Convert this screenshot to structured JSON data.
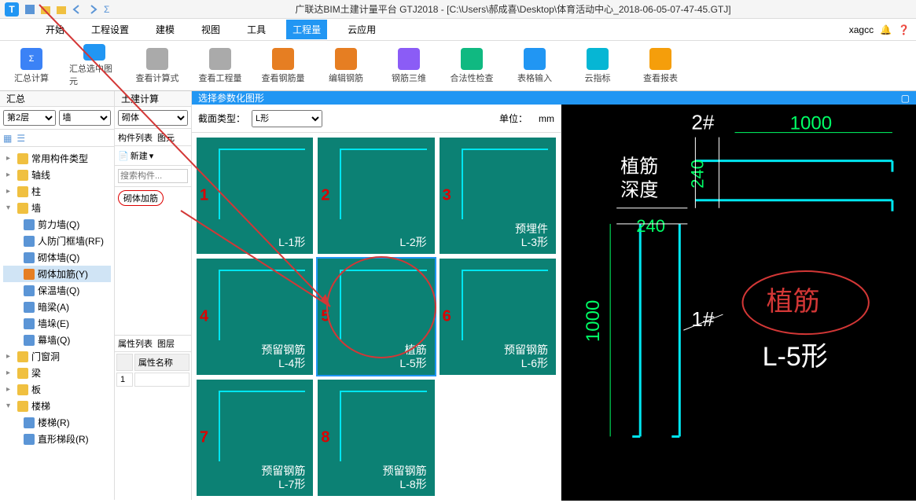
{
  "app": {
    "title": "广联达BIM土建计量平台 GTJ2018 - [C:\\Users\\郝成喜\\Desktop\\体育活动中心_2018-06-05-07-47-45.GTJ]",
    "username": "xagcc"
  },
  "menus": [
    "开始",
    "工程设置",
    "建模",
    "视图",
    "工具",
    "工程量",
    "云应用"
  ],
  "menu_active": "工程量",
  "ribbon": [
    "汇总计算",
    "汇总选中图元",
    "查看计算式",
    "查看工程量",
    "查看钢筋量",
    "编辑钢筋",
    "钢筋三维",
    "合法性检查",
    "表格输入",
    "云指标",
    "查看报表"
  ],
  "left_section": "汇总",
  "mid_section": "土建计算",
  "drop_floor": "第2层",
  "drop_cat": "墙",
  "drop_sub": "砌体",
  "tab_components": "构件列表",
  "tab_drawing": "图元",
  "tab_new": "新建",
  "search_placeholder": "搜索构件...",
  "highlighted_component": "砌体加筋",
  "prop_tab": "属性列表",
  "prop_tab2": "图层",
  "prop_col": "属性名称",
  "prop_row": "1",
  "tree": {
    "n1": "常用构件类型",
    "n2": "轴线",
    "n3": "柱",
    "n4": "墙",
    "n4_children": {
      "a": "剪力墙(Q)",
      "b": "人防门框墙(RF)",
      "c": "砌体墙(Q)",
      "d": "砌体加筋(Y)",
      "e": "保温墙(Q)",
      "f": "暗梁(A)",
      "g": "墙垛(E)",
      "h": "幕墙(Q)"
    },
    "n5": "门窗洞",
    "n6": "梁",
    "n7": "板",
    "n8": "楼梯",
    "n8_children": {
      "a": "楼梯(R)",
      "b": "直形梯段(R)"
    }
  },
  "dialog": {
    "title": "选择参数化图形",
    "section_label": "截面类型：",
    "section_value": "L形",
    "unit_label": "单位：",
    "unit_value": "mm",
    "cells": [
      {
        "num": "1",
        "label": "L-1形"
      },
      {
        "num": "2",
        "label": "L-2形"
      },
      {
        "num": "3",
        "label": "预埋件\nL-3形"
      },
      {
        "num": "4",
        "label": "预留钢筋\nL-4形"
      },
      {
        "num": "5",
        "label": "植筋\nL-5形",
        "selected": true
      },
      {
        "num": "6",
        "label": "预留钢筋\nL-6形"
      },
      {
        "num": "7",
        "label": "预留钢筋\nL-7形"
      },
      {
        "num": "8",
        "label": "预留钢筋\nL-8形"
      }
    ]
  },
  "preview": {
    "type": "diagram",
    "title_top": "2#",
    "dim_top": "1000",
    "label_left_cn1": "植筋",
    "label_left_cn2": "深度",
    "dim_v1": "240",
    "dim_h1": "240",
    "dim_left": "1000",
    "label_mid": "1#",
    "big_label1": "植筋",
    "big_label2": "L-5形",
    "colors": {
      "bg": "#000000",
      "rebar": "#00e6f0",
      "dim": "#00ff66",
      "text_white": "#ffffff",
      "accent": "#d33736"
    }
  }
}
